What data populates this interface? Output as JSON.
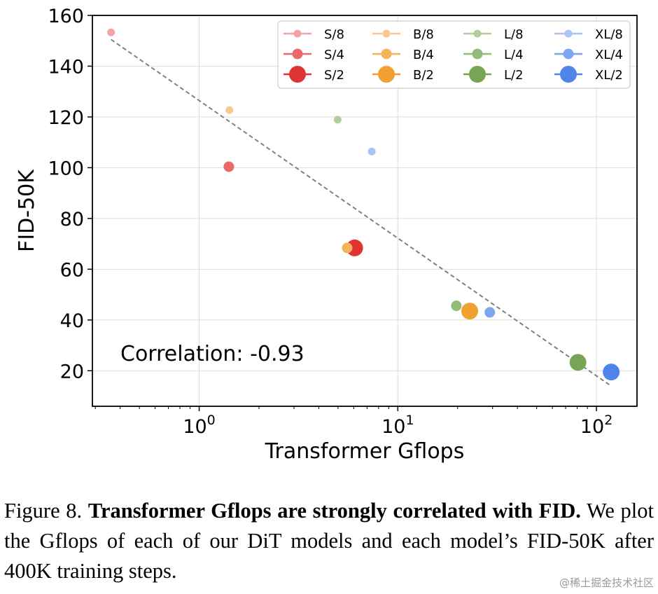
{
  "chart_data": {
    "type": "scatter",
    "xlabel": "Transformer Gflops",
    "ylabel": "FID-50K",
    "xscale": "log",
    "xlim": [
      0.29,
      160
    ],
    "ylim": [
      6,
      160
    ],
    "x_ticks": [
      {
        "value": 1,
        "base": "10",
        "exp": "0"
      },
      {
        "value": 10,
        "base": "10",
        "exp": "1"
      },
      {
        "value": 100,
        "base": "10",
        "exp": "2"
      }
    ],
    "y_ticks": [
      20,
      40,
      60,
      80,
      100,
      120,
      140,
      160
    ],
    "grid": true,
    "legend_position": "top-right",
    "annotation": "Correlation: -0.93",
    "trend_line": {
      "x": [
        0.36,
        116
      ],
      "y": [
        150.5,
        14.5
      ],
      "color": "#808080",
      "style": "dashed"
    },
    "series": [
      {
        "name": "S/8",
        "gflops": 0.36,
        "fid": 153.3,
        "color": "#f4a3a3",
        "size": 1
      },
      {
        "name": "S/4",
        "gflops": 1.41,
        "fid": 100.4,
        "color": "#ea6a6a",
        "size": 2
      },
      {
        "name": "S/2",
        "gflops": 6.06,
        "fid": 68.4,
        "color": "#e03434",
        "size": 3
      },
      {
        "name": "B/8",
        "gflops": 1.42,
        "fid": 122.7,
        "color": "#f8c98c",
        "size": 1
      },
      {
        "name": "B/4",
        "gflops": 5.56,
        "fid": 68.4,
        "color": "#f4b45c",
        "size": 2
      },
      {
        "name": "B/2",
        "gflops": 23.01,
        "fid": 43.5,
        "color": "#f0a030",
        "size": 3
      },
      {
        "name": "L/8",
        "gflops": 4.98,
        "fid": 118.9,
        "color": "#b1cf9a",
        "size": 1
      },
      {
        "name": "L/4",
        "gflops": 19.7,
        "fid": 45.6,
        "color": "#93bb79",
        "size": 2
      },
      {
        "name": "L/2",
        "gflops": 80.71,
        "fid": 23.3,
        "color": "#76a653",
        "size": 3
      },
      {
        "name": "XL/8",
        "gflops": 7.39,
        "fid": 106.4,
        "color": "#a9c4f5",
        "size": 1
      },
      {
        "name": "XL/4",
        "gflops": 29.05,
        "fid": 43.0,
        "color": "#7ea5f0",
        "size": 2
      },
      {
        "name": "XL/2",
        "gflops": 118.64,
        "fid": 19.5,
        "color": "#4f84ea",
        "size": 3
      }
    ]
  },
  "caption": {
    "figure_label": "Figure 8.",
    "bold_text": "Transformer Gflops are strongly correlated with FID.",
    "body_text": "We plot the Gflops of each of our DiT models and each model’s FID-50K after 400K training steps."
  },
  "watermark": "@稀土掘金技术社区"
}
